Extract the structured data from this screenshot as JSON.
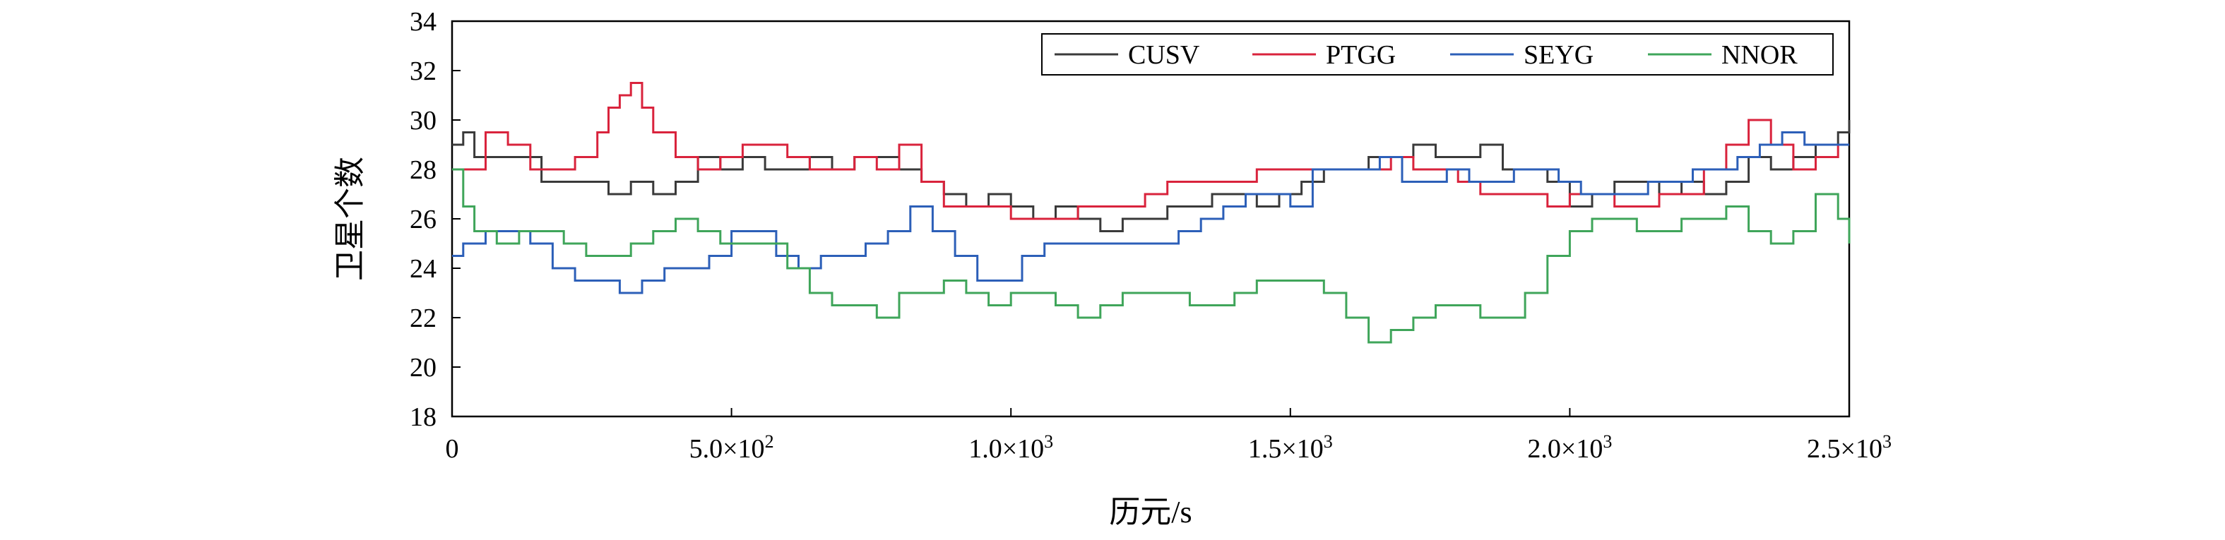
{
  "chart_data": {
    "type": "line",
    "title": "",
    "xlabel": "历元/s",
    "ylabel": "卫星个数",
    "xlim": [
      0,
      2500
    ],
    "ylim": [
      18,
      34
    ],
    "xticks": [
      0,
      500,
      1000,
      1500,
      2000,
      2500
    ],
    "xtick_labels": [
      "0",
      "5.0×10²",
      "1.0×10³",
      "1.5×10³",
      "2.0×10³",
      "2.5×10³"
    ],
    "yticks": [
      18,
      20,
      22,
      24,
      26,
      28,
      30,
      32,
      34
    ],
    "ytick_labels": [
      "18",
      "20",
      "22",
      "24",
      "26",
      "28",
      "30",
      "32",
      "34"
    ],
    "grid": false,
    "legend_position": "top-right",
    "series": [
      {
        "name": "CUSV",
        "color": "#3a3a3a",
        "x": [
          0,
          20,
          40,
          80,
          120,
          160,
          200,
          240,
          280,
          320,
          360,
          400,
          440,
          480,
          520,
          560,
          600,
          640,
          680,
          720,
          760,
          800,
          840,
          880,
          920,
          960,
          1000,
          1040,
          1080,
          1120,
          1160,
          1200,
          1240,
          1280,
          1320,
          1360,
          1400,
          1440,
          1480,
          1520,
          1560,
          1600,
          1640,
          1680,
          1720,
          1760,
          1800,
          1840,
          1880,
          1920,
          1960,
          2000,
          2040,
          2080,
          2120,
          2160,
          2200,
          2240,
          2280,
          2320,
          2360,
          2400,
          2440,
          2480,
          2500
        ],
        "values": [
          29,
          29.5,
          28.5,
          28.5,
          28.5,
          27.5,
          27.5,
          27.5,
          27,
          27.5,
          27,
          27.5,
          28.5,
          28,
          28.5,
          28,
          28,
          28.5,
          28,
          28.5,
          28.5,
          28,
          27.5,
          27,
          26.5,
          27,
          26.5,
          26,
          26.5,
          26,
          25.5,
          26,
          26,
          26.5,
          26.5,
          27,
          27,
          26.5,
          27,
          27.5,
          28,
          28,
          28.5,
          28.5,
          29,
          28.5,
          28.5,
          29,
          28,
          28,
          27.5,
          26.5,
          27,
          27.5,
          27.5,
          27,
          27.5,
          27,
          27.5,
          28.5,
          28,
          28.5,
          29,
          29.5,
          30
        ]
      },
      {
        "name": "PTGG",
        "color": "#d9233c",
        "x": [
          0,
          30,
          60,
          100,
          140,
          180,
          220,
          260,
          280,
          300,
          320,
          340,
          360,
          400,
          440,
          480,
          520,
          560,
          600,
          640,
          680,
          720,
          760,
          800,
          840,
          880,
          920,
          960,
          1000,
          1040,
          1080,
          1120,
          1160,
          1200,
          1240,
          1280,
          1320,
          1360,
          1400,
          1440,
          1480,
          1520,
          1560,
          1600,
          1640,
          1680,
          1720,
          1760,
          1800,
          1840,
          1880,
          1920,
          1960,
          2000,
          2040,
          2080,
          2120,
          2160,
          2200,
          2240,
          2280,
          2320,
          2360,
          2400,
          2440,
          2480,
          2500
        ],
        "values": [
          28,
          28,
          29.5,
          29,
          28,
          28,
          28.5,
          29.5,
          30.5,
          31,
          31.5,
          30.5,
          29.5,
          28.5,
          28,
          28.5,
          29,
          29,
          28.5,
          28,
          28,
          28.5,
          28,
          29,
          27.5,
          26.5,
          26.5,
          26.5,
          26,
          26,
          26,
          26.5,
          26.5,
          26.5,
          27,
          27.5,
          27.5,
          27.5,
          27.5,
          28,
          28,
          28,
          28,
          28,
          28,
          28.5,
          28,
          28,
          27.5,
          27,
          27,
          27,
          26.5,
          27,
          27,
          26.5,
          26.5,
          27,
          27,
          28,
          29,
          30,
          29,
          28,
          28.5,
          29,
          29
        ]
      },
      {
        "name": "SEYG",
        "color": "#2c5fb8",
        "x": [
          0,
          20,
          60,
          100,
          140,
          180,
          220,
          260,
          300,
          340,
          380,
          420,
          460,
          500,
          540,
          580,
          620,
          660,
          700,
          740,
          780,
          820,
          860,
          900,
          940,
          980,
          1020,
          1060,
          1100,
          1140,
          1180,
          1220,
          1260,
          1300,
          1340,
          1380,
          1420,
          1460,
          1500,
          1540,
          1580,
          1620,
          1660,
          1700,
          1740,
          1780,
          1820,
          1860,
          1900,
          1940,
          1980,
          2020,
          2060,
          2100,
          2140,
          2180,
          2220,
          2260,
          2300,
          2340,
          2380,
          2420,
          2460,
          2500
        ],
        "values": [
          24.5,
          25,
          25.5,
          25.5,
          25,
          24,
          23.5,
          23.5,
          23,
          23.5,
          24,
          24,
          24.5,
          25.5,
          25.5,
          24.5,
          24,
          24.5,
          24.5,
          25,
          25.5,
          26.5,
          25.5,
          24.5,
          23.5,
          23.5,
          24.5,
          25,
          25,
          25,
          25,
          25,
          25,
          25.5,
          26,
          26.5,
          27,
          27,
          26.5,
          28,
          28,
          28,
          28.5,
          27.5,
          27.5,
          28,
          27.5,
          27.5,
          28,
          28,
          27.5,
          27,
          27,
          27,
          27.5,
          27.5,
          28,
          28,
          28.5,
          29,
          29.5,
          29,
          29,
          29
        ]
      },
      {
        "name": "NNOR",
        "color": "#3fa55a",
        "x": [
          0,
          20,
          40,
          80,
          120,
          160,
          200,
          240,
          280,
          320,
          360,
          400,
          440,
          480,
          520,
          560,
          600,
          640,
          680,
          720,
          760,
          800,
          840,
          880,
          920,
          960,
          1000,
          1040,
          1080,
          1120,
          1160,
          1200,
          1240,
          1280,
          1320,
          1360,
          1400,
          1440,
          1480,
          1520,
          1560,
          1600,
          1640,
          1680,
          1720,
          1760,
          1800,
          1840,
          1880,
          1920,
          1960,
          2000,
          2040,
          2080,
          2120,
          2160,
          2200,
          2240,
          2280,
          2320,
          2360,
          2400,
          2440,
          2480,
          2500
        ],
        "values": [
          28,
          26.5,
          25.5,
          25,
          25.5,
          25.5,
          25,
          24.5,
          24.5,
          25,
          25.5,
          26,
          25.5,
          25,
          25,
          25,
          24,
          23,
          22.5,
          22.5,
          22,
          23,
          23,
          23.5,
          23,
          22.5,
          23,
          23,
          22.5,
          22,
          22.5,
          23,
          23,
          23,
          22.5,
          22.5,
          23,
          23.5,
          23.5,
          23.5,
          23,
          22,
          21,
          21.5,
          22,
          22.5,
          22.5,
          22,
          22,
          23,
          24.5,
          25.5,
          26,
          26,
          25.5,
          25.5,
          26,
          26,
          26.5,
          25.5,
          25,
          25.5,
          27,
          26,
          25
        ]
      }
    ]
  }
}
